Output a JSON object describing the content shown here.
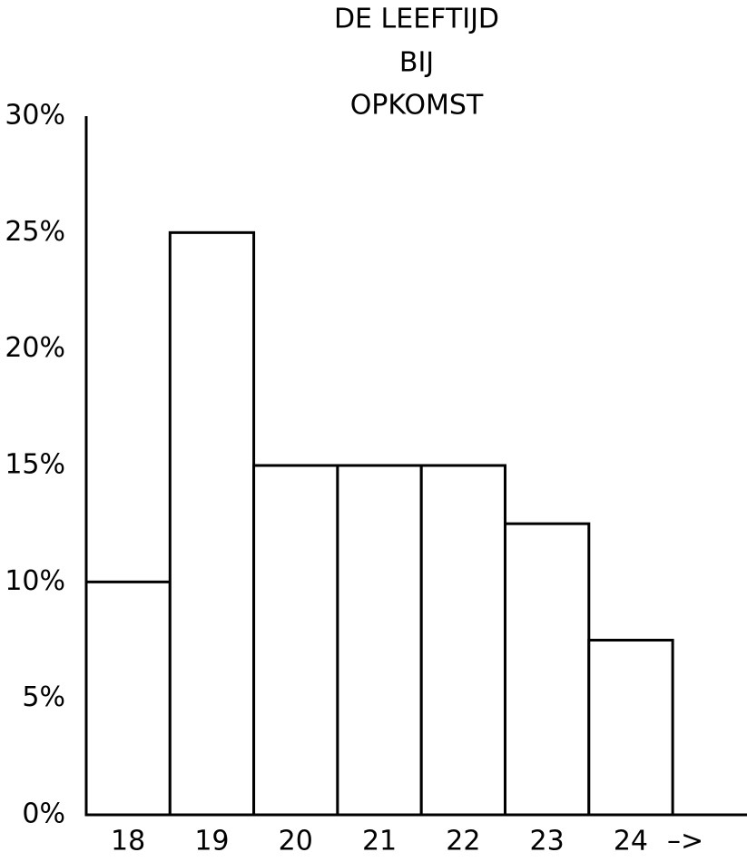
{
  "chart_data": {
    "type": "bar",
    "title": [
      "DE LEEFTIJD",
      "BIJ",
      "OPKOMST"
    ],
    "categories": [
      "18",
      "19",
      "20",
      "21",
      "22",
      "23",
      "24"
    ],
    "x_arrow": "–>",
    "values": [
      10,
      25,
      15,
      15,
      15,
      12.5,
      7.5
    ],
    "color": "#ffffff",
    "ylim": [
      0,
      30
    ],
    "yticks": [
      {
        "value": 0,
        "label": "0%"
      },
      {
        "value": 5,
        "label": "5%"
      },
      {
        "value": 10,
        "label": "10%"
      },
      {
        "value": 15,
        "label": "15%"
      },
      {
        "value": 20,
        "label": "20%"
      },
      {
        "value": 25,
        "label": "25%"
      },
      {
        "value": 30,
        "label": "30%"
      }
    ],
    "grid": false
  }
}
